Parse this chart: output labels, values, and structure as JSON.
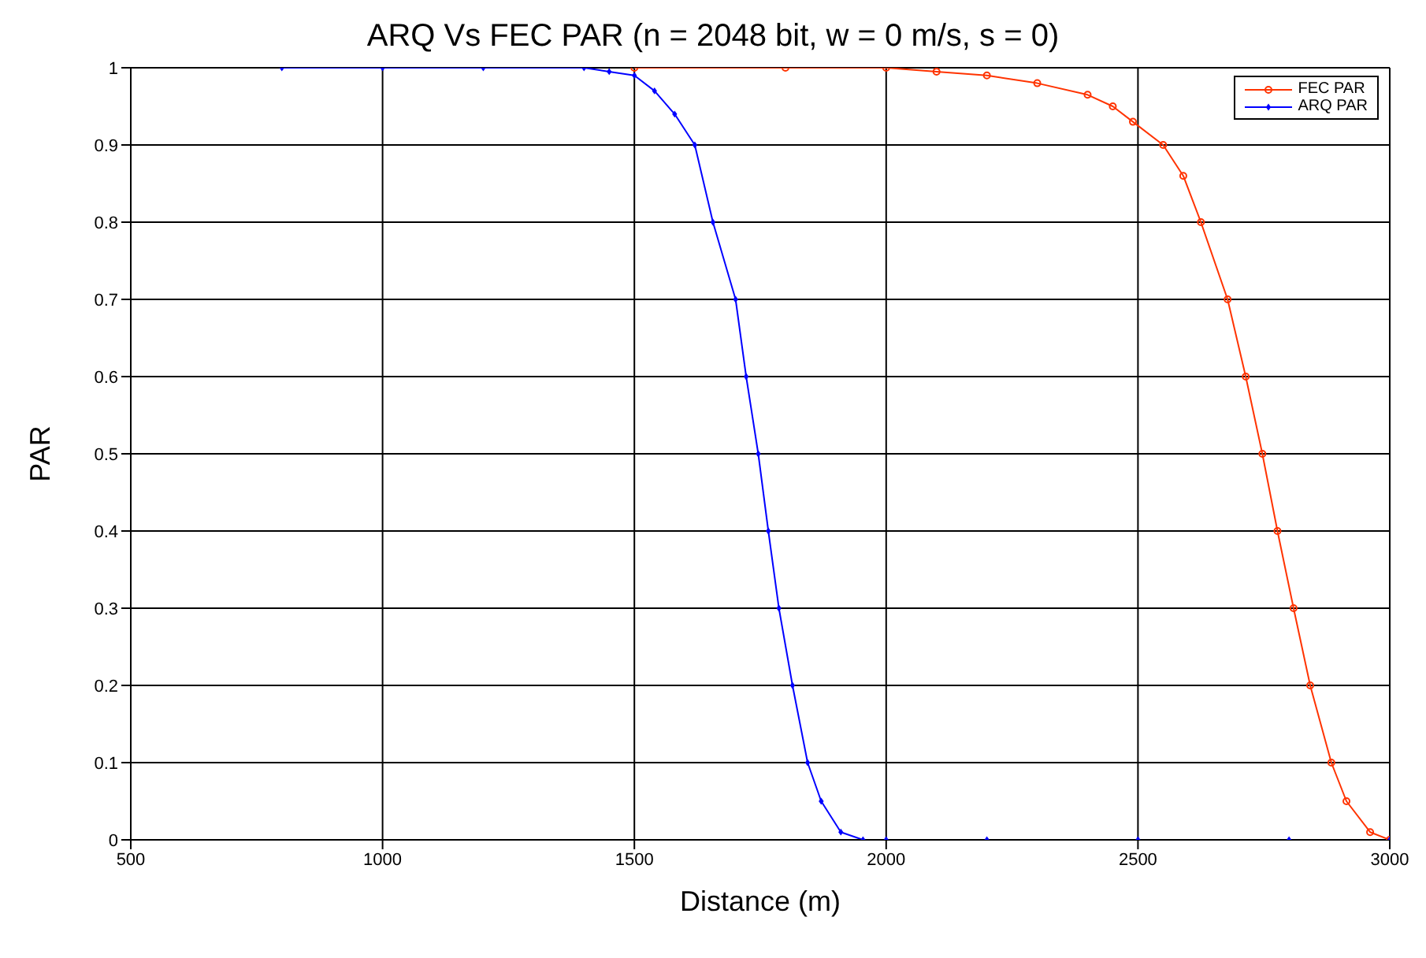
{
  "chart_data": {
    "type": "line",
    "title": "ARQ Vs FEC PAR (n = 2048 bit, w = 0 m/s, s = 0)",
    "xlabel": "Distance (m)",
    "ylabel": "PAR",
    "xlim": [
      500,
      3000
    ],
    "xticks": [
      500,
      1000,
      1500,
      2000,
      2500,
      3000
    ],
    "ylim": [
      0,
      1
    ],
    "yticks": [
      0,
      0.1,
      0.2,
      0.3,
      0.4,
      0.5,
      0.6,
      0.7,
      0.8,
      0.9,
      1
    ],
    "grid": true,
    "legend": "top right",
    "line_style": "solid",
    "series": [
      {
        "name": "FEC PAR",
        "color": "#ff3300",
        "marker": "circle",
        "x": [
          1500,
          1800,
          2000,
          2100,
          2200,
          2300,
          2400,
          2450,
          2490,
          2550,
          2590,
          2625,
          2678,
          2714,
          2747,
          2777,
          2809,
          2842,
          2884,
          2914,
          2961,
          3000
        ],
        "values": [
          1,
          1,
          1,
          0.995,
          0.99,
          0.98,
          0.965,
          0.95,
          0.93,
          0.9,
          0.86,
          0.8,
          0.7,
          0.6,
          0.5,
          0.4,
          0.3,
          0.2,
          0.1,
          0.05,
          0.01,
          0
        ]
      },
      {
        "name": "ARQ PAR",
        "color": "#0000ff",
        "marker": "diamond",
        "x": [
          800,
          1000,
          1200,
          1400,
          1450,
          1500,
          1540,
          1580,
          1620,
          1656,
          1701,
          1722,
          1746,
          1766,
          1787,
          1814,
          1844,
          1871,
          1910,
          1954,
          2000,
          2200,
          2500,
          2800,
          3000
        ],
        "values": [
          1,
          1,
          1,
          1,
          0.995,
          0.99,
          0.97,
          0.94,
          0.9,
          0.8,
          0.7,
          0.6,
          0.5,
          0.4,
          0.3,
          0.2,
          0.1,
          0.05,
          0.01,
          0,
          0,
          0,
          0,
          0,
          0
        ]
      }
    ]
  }
}
